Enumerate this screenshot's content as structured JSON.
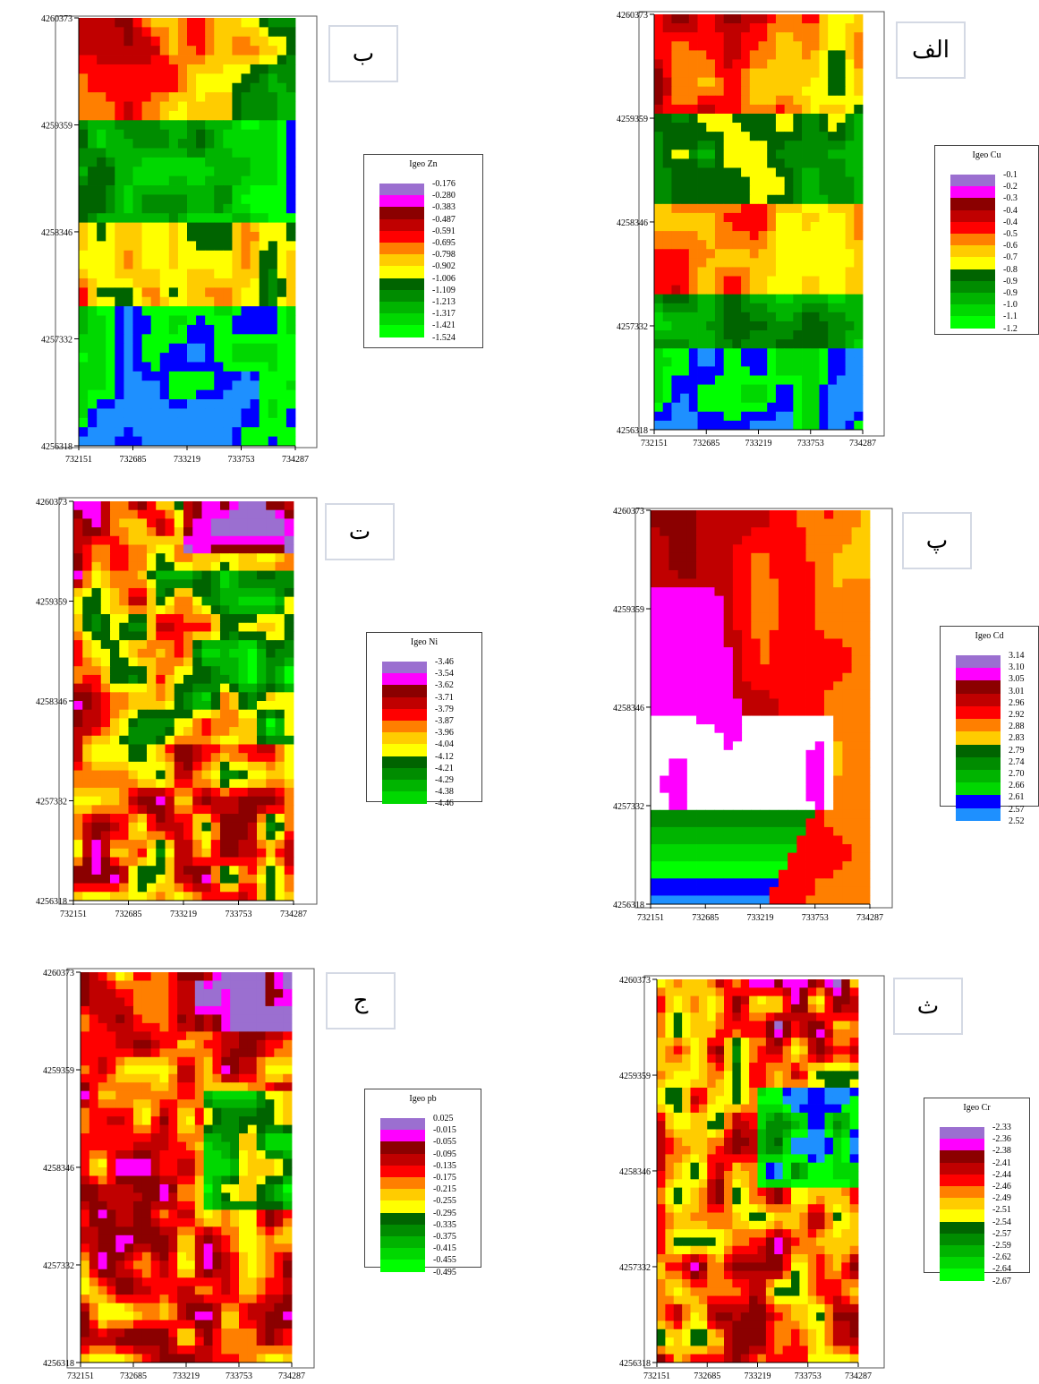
{
  "chart_data": [
    {
      "type": "heatmap",
      "panel_label": "ب",
      "legend_title": "Igeo Zn",
      "legend_values": [
        "-0.176",
        "-0.280",
        "-0.383",
        "-0.487",
        "-0.591",
        "-0.695",
        "-0.798",
        "-0.902",
        "-1.006",
        "-1.109",
        "-1.213",
        "-1.317",
        "-1.421",
        "-1.524"
      ],
      "x_ticks": [
        "732151",
        "732685",
        "733219",
        "733753",
        "734287"
      ],
      "y_ticks": [
        "4260373",
        "4259359",
        "4258346",
        "4257332",
        "4256318"
      ],
      "xlim": [
        732151,
        734287
      ],
      "ylim": [
        4256318,
        4260373
      ]
    },
    {
      "type": "heatmap",
      "panel_label": "الف",
      "legend_title": "Igeo Cu",
      "legend_values": [
        "-0.1",
        "-0.2",
        "-0.3",
        "-0.4",
        "-0.4",
        "-0.5",
        "-0.6",
        "-0.7",
        "-0.8",
        "-0.9",
        "-0.9",
        "-1.0",
        "-1.1",
        "-1.2"
      ],
      "x_ticks": [
        "732151",
        "732685",
        "733219",
        "733753",
        "734287"
      ],
      "y_ticks": [
        "4260373",
        "4259359",
        "4258346",
        "4257332",
        "4256318"
      ],
      "xlim": [
        732151,
        734287
      ],
      "ylim": [
        4256318,
        4260373
      ]
    },
    {
      "type": "heatmap",
      "panel_label": "ت",
      "legend_title": "Igeo Ni",
      "legend_values": [
        "-3.46",
        "-3.54",
        "-3.62",
        "-3.71",
        "-3.79",
        "-3.87",
        "-3.96",
        "-4.04",
        "-4.12",
        "-4.21",
        "-4.29",
        "-4.38",
        "-4.46"
      ],
      "x_ticks": [
        "732151",
        "732685",
        "733219",
        "733753",
        "734287"
      ],
      "y_ticks": [
        "4260373",
        "4259359",
        "4258346",
        "4257332",
        "4256318"
      ],
      "xlim": [
        732151,
        734287
      ],
      "ylim": [
        4256318,
        4260373
      ]
    },
    {
      "type": "heatmap",
      "panel_label": "پ",
      "legend_title": "Igeo Cd",
      "legend_values": [
        "3.14",
        "3.10",
        "3.05",
        "3.01",
        "2.96",
        "2.92",
        "2.88",
        "2.83",
        "2.79",
        "2.74",
        "2.70",
        "2.66",
        "2.61",
        "2.57",
        "2.52"
      ],
      "x_ticks": [
        "732151",
        "732685",
        "733219",
        "733753",
        "734287"
      ],
      "y_ticks": [
        "4260373",
        "4259359",
        "4258346",
        "4257332",
        "4256318"
      ],
      "xlim": [
        732151,
        734287
      ],
      "ylim": [
        4256318,
        4260373
      ]
    },
    {
      "type": "heatmap",
      "panel_label": "ج",
      "legend_title": "Igeo pb",
      "legend_values": [
        "0.025",
        "-0.015",
        "-0.055",
        "-0.095",
        "-0.135",
        "-0.175",
        "-0.215",
        "-0.255",
        "-0.295",
        "-0.335",
        "-0.375",
        "-0.415",
        "-0.455",
        "-0.495"
      ],
      "x_ticks": [
        "732151",
        "732685",
        "733219",
        "733753",
        "734287"
      ],
      "y_ticks": [
        "4260373",
        "4259359",
        "4258346",
        "4257332",
        "4256318"
      ],
      "xlim": [
        732151,
        734287
      ],
      "ylim": [
        4256318,
        4260373
      ]
    },
    {
      "type": "heatmap",
      "panel_label": "ث",
      "legend_title": "Igeo Cr",
      "legend_values": [
        "-2.33",
        "-2.36",
        "-2.38",
        "-2.41",
        "-2.44",
        "-2.46",
        "-2.49",
        "-2.51",
        "-2.54",
        "-2.57",
        "-2.59",
        "-2.62",
        "-2.64",
        "-2.67"
      ],
      "x_ticks": [
        "732151",
        "732685",
        "733219",
        "733753",
        "734287"
      ],
      "y_ticks": [
        "4260373",
        "4259359",
        "4258346",
        "4257332",
        "4256318"
      ],
      "xlim": [
        732151,
        734287
      ],
      "ylim": [
        4256318,
        4260373
      ]
    }
  ],
  "palette": [
    "#9b6fd0",
    "#ff00ff",
    "#8b0000",
    "#c00000",
    "#ff0000",
    "#ff7f00",
    "#ffcc00",
    "#ffff00",
    "#006400",
    "#008c00",
    "#00b400",
    "#00d800",
    "#00ff00",
    "#0000ff",
    "#1e90ff",
    "#00ccff",
    "#ffffff"
  ]
}
